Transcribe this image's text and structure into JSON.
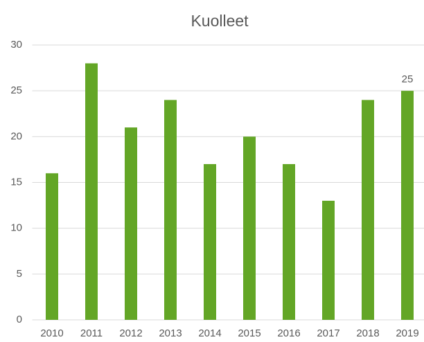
{
  "chart_data": {
    "type": "bar",
    "title": "Kuolleet",
    "categories": [
      "2010",
      "2011",
      "2012",
      "2013",
      "2014",
      "2015",
      "2016",
      "2017",
      "2018",
      "2019"
    ],
    "values": [
      16,
      28,
      21,
      24,
      17,
      20,
      17,
      13,
      24,
      25
    ],
    "value_labels": [
      null,
      null,
      null,
      null,
      null,
      null,
      null,
      null,
      null,
      "25"
    ],
    "color": "#63a626",
    "ylim": [
      0,
      30
    ],
    "yticks": [
      0,
      5,
      10,
      15,
      20,
      25,
      30
    ],
    "grid": true
  }
}
